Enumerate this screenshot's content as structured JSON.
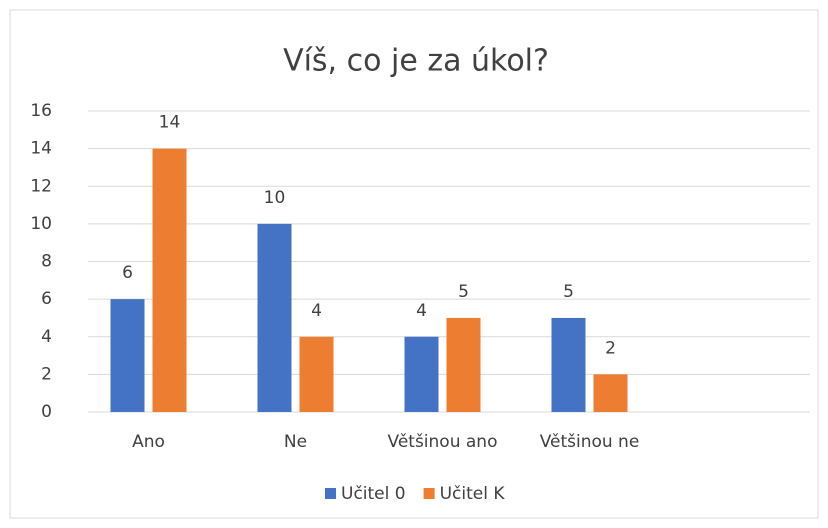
{
  "chart_data": {
    "type": "bar",
    "title": "Víš, co je za úkol?",
    "categories": [
      "Ano",
      "Ne",
      "Většinou ano",
      "Většinou ne"
    ],
    "series": [
      {
        "name": "Učitel 0",
        "color": "#4472c4",
        "values": [
          6,
          10,
          4,
          5
        ]
      },
      {
        "name": "Učitel K",
        "color": "#ed7d31",
        "values": [
          14,
          4,
          5,
          2
        ]
      }
    ],
    "ylim": [
      0,
      16
    ],
    "yticks": [
      0,
      2,
      4,
      6,
      8,
      10,
      12,
      14,
      16
    ],
    "grid": true,
    "legend": "bottom"
  }
}
